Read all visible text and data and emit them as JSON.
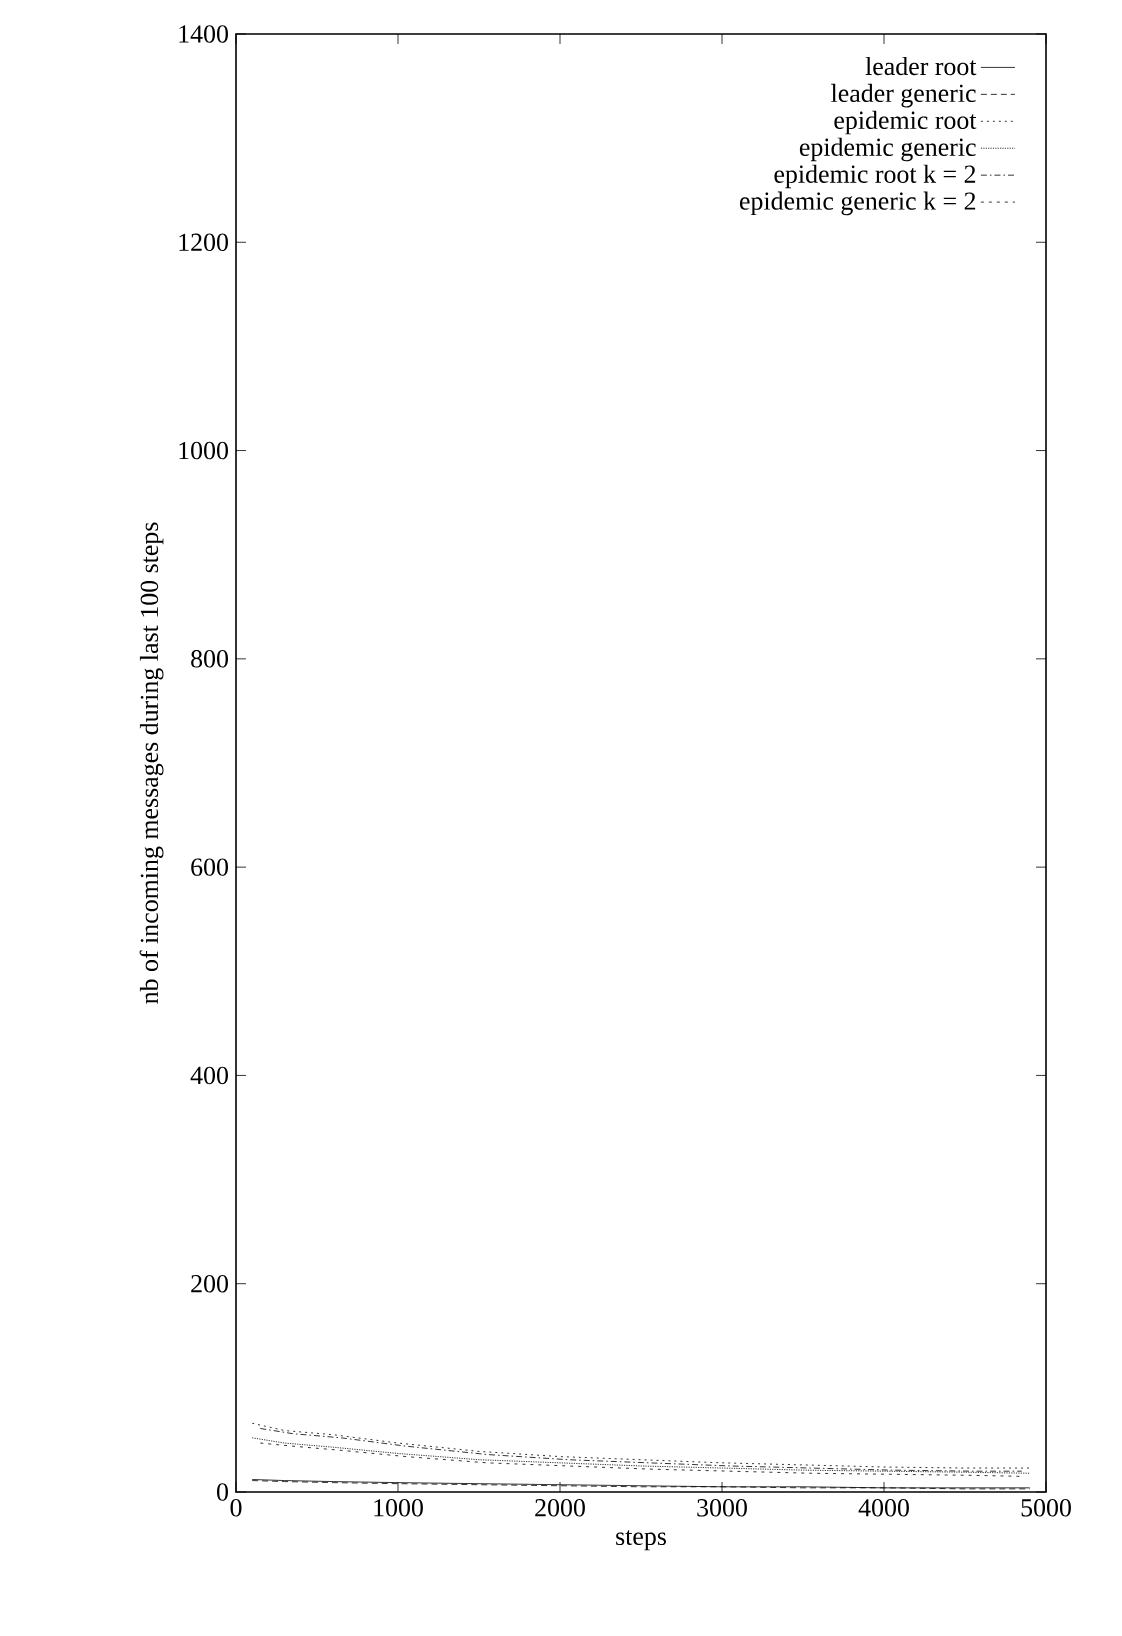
{
  "chart_data": {
    "type": "line",
    "xlabel": "steps",
    "ylabel": "nb of incoming messages during last 100 steps",
    "xlim": [
      0,
      5000
    ],
    "ylim": [
      0,
      1400
    ],
    "xticks": [
      0,
      1000,
      2000,
      3000,
      4000,
      5000
    ],
    "yticks": [
      0,
      200,
      400,
      600,
      800,
      1000,
      1200,
      1400
    ],
    "legend": "top right",
    "grid": false,
    "marker": "none",
    "series": [
      {
        "name": "leader root",
        "color": "#000000",
        "line_style": "solid",
        "x": [
          100,
          300,
          600,
          1000,
          1500,
          2000,
          2500,
          3000,
          3500,
          4000,
          4500,
          4900
        ],
        "values": [
          12,
          11,
          10,
          9,
          8,
          7,
          6,
          5,
          5,
          4,
          4,
          4
        ]
      },
      {
        "name": "leader generic",
        "color": "#000000",
        "line_style": "dashed",
        "x": [
          100,
          300,
          600,
          1000,
          1500,
          2000,
          2500,
          3000,
          3500,
          4000,
          4500,
          4900
        ],
        "values": [
          11,
          10,
          9,
          8,
          7,
          6,
          5,
          5,
          4,
          4,
          3,
          3
        ]
      },
      {
        "name": "epidemic root",
        "color": "#000000",
        "line_style": "dotted",
        "x": [
          100,
          300,
          600,
          1000,
          1500,
          2000,
          2500,
          3000,
          3500,
          4000,
          4500,
          4900
        ],
        "values": [
          66,
          59,
          55,
          47,
          39,
          34,
          31,
          28,
          26,
          24,
          23,
          23
        ]
      },
      {
        "name": "epidemic generic",
        "color": "#000000",
        "line_style": "densely dotted",
        "x": [
          100,
          300,
          600,
          1000,
          1500,
          2000,
          2500,
          3000,
          3500,
          4000,
          4500,
          4900
        ],
        "values": [
          52,
          47,
          43,
          37,
          31,
          28,
          25,
          23,
          21,
          20,
          19,
          18
        ]
      },
      {
        "name": "epidemic root k = 2",
        "color": "#000000",
        "line_style": "dashdotted",
        "x": [
          150,
          350,
          650,
          1050,
          1550,
          2050,
          2550,
          3050,
          3550,
          4050,
          4550,
          4850
        ],
        "values": [
          61,
          56,
          52,
          44,
          36,
          31,
          28,
          25,
          23,
          21,
          20,
          20
        ]
      },
      {
        "name": "epidemic generic k = 2",
        "color": "#000000",
        "line_style": "loosely dashed",
        "x": [
          150,
          350,
          650,
          1050,
          1550,
          2050,
          2550,
          3050,
          3550,
          4050,
          4550,
          4850
        ],
        "values": [
          47,
          44,
          40,
          34,
          28,
          25,
          22,
          20,
          18,
          17,
          16,
          15
        ]
      }
    ]
  }
}
